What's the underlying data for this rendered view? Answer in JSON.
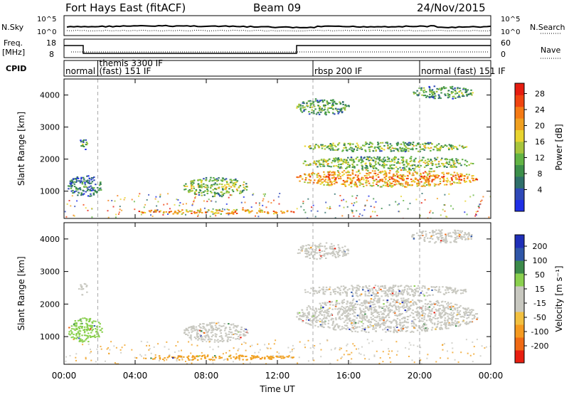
{
  "header": {
    "title": "Fort Hays East (fitACF)",
    "beam": "Beam 09",
    "date": "24/Nov/2015"
  },
  "sky_panel": {
    "left_label": "N.Sky",
    "right_label": "N.Search",
    "left_ticks": [
      "10^5",
      "10^0"
    ],
    "right_ticks": [
      "10^5",
      "10^0"
    ]
  },
  "freq_panel": {
    "left_label_1": "Freq.",
    "left_label_2": "[MHz]",
    "right_label": "Nave",
    "left_ticks": [
      "18",
      "8"
    ],
    "right_ticks": [
      "60",
      "0"
    ]
  },
  "cpid_panel": {
    "label": "CPID",
    "modes": [
      {
        "text": "normal",
        "start_hour": 0,
        "row": 2
      },
      {
        "text": "themis 3300 IF",
        "start_hour": 1.9,
        "row": 1
      },
      {
        "text": "(fast) 151 IF",
        "start_hour": 1.9,
        "row": 2
      },
      {
        "text": "rbsp 200 IF",
        "start_hour": 14.0,
        "row": 2
      },
      {
        "text": "normal (fast) 151 IF",
        "start_hour": 20.0,
        "row": 2
      }
    ],
    "divider_hours": [
      1.9,
      14.0,
      20.0
    ]
  },
  "chart_data": [
    {
      "type": "heatmap",
      "name": "power",
      "ylabel": "Slant Range [km]",
      "xlabel": "Time UT",
      "xlim": [
        0,
        24
      ],
      "ylim": [
        150,
        4500
      ],
      "yticks": [
        "1000",
        "2000",
        "3000",
        "4000"
      ],
      "colorbar_label": "Power [dB]",
      "colorbar_ticks": [
        "4",
        "8",
        "12",
        "16",
        "20",
        "24",
        "28"
      ],
      "colorbar_colors": [
        "#1f2fe6",
        "#2f49b8",
        "#2f6f6a",
        "#3c8f4a",
        "#62b444",
        "#a8c53c",
        "#e8d430",
        "#f0a020",
        "#f57a14",
        "#f04410",
        "#e61d10"
      ],
      "regions": [
        {
          "t0": 0.2,
          "t1": 2.1,
          "r0": 850,
          "r1": 1500,
          "level": 3
        },
        {
          "t0": 0.8,
          "t1": 1.3,
          "r0": 2300,
          "r1": 2650,
          "level": 4
        },
        {
          "t0": 6.7,
          "t1": 10.3,
          "r0": 850,
          "r1": 1450,
          "level": 5
        },
        {
          "t0": 4.0,
          "t1": 13.0,
          "r0": 300,
          "r1": 450,
          "level": 8
        },
        {
          "t0": 13.0,
          "t1": 23.2,
          "r0": 1150,
          "r1": 1700,
          "level": 8
        },
        {
          "t0": 13.4,
          "t1": 23.0,
          "r0": 1700,
          "r1": 2100,
          "level": 5
        },
        {
          "t0": 13.5,
          "t1": 22.6,
          "r0": 2250,
          "r1": 2550,
          "level": 5
        },
        {
          "t0": 13.0,
          "t1": 16.0,
          "r0": 3400,
          "r1": 3900,
          "level": 4
        },
        {
          "t0": 19.5,
          "t1": 23.0,
          "r0": 3900,
          "r1": 4300,
          "level": 4
        }
      ],
      "vertical_markers_hours": [
        1.9,
        14.0,
        20.0
      ]
    },
    {
      "type": "heatmap",
      "name": "velocity",
      "ylabel": "Slant Range [km]",
      "xlabel": "Time UT",
      "xlim": [
        0,
        24
      ],
      "ylim": [
        150,
        4500
      ],
      "yticks": [
        "1000",
        "2000",
        "3000",
        "4000"
      ],
      "xticks": [
        "00:00",
        "04:00",
        "08:00",
        "12:00",
        "16:00",
        "20:00",
        "00:00"
      ],
      "colorbar_label": "Velocity [m s⁻¹]",
      "colorbar_ticks": [
        "200",
        "100",
        "50",
        "15",
        "-15",
        "-50",
        "-100",
        "-200"
      ],
      "colorbar_colors": [
        "#1f2fb8",
        "#2f56a8",
        "#3c8a4a",
        "#8ad04e",
        "#c8c8c0",
        "#c8c8c0",
        "#f2c040",
        "#f59a20",
        "#f06a14",
        "#e81e10"
      ],
      "regions": [
        {
          "t0": 0.2,
          "t1": 2.1,
          "r0": 850,
          "r1": 1600,
          "color": "#8ad04e"
        },
        {
          "t0": 0.8,
          "t1": 1.3,
          "r0": 2300,
          "r1": 2650,
          "color": "#c8c8c0"
        },
        {
          "t0": 6.7,
          "t1": 10.3,
          "r0": 850,
          "r1": 1450,
          "color": "#c8c8c0"
        },
        {
          "t0": 4.0,
          "t1": 13.0,
          "r0": 300,
          "r1": 450,
          "color": "#f0a020"
        },
        {
          "t0": 13.0,
          "t1": 23.2,
          "r0": 1150,
          "r1": 2200,
          "color": "#c8c8c0"
        },
        {
          "t0": 13.5,
          "t1": 22.6,
          "r0": 2250,
          "r1": 2600,
          "color": "#c8c8c0"
        },
        {
          "t0": 13.0,
          "t1": 16.0,
          "r0": 3400,
          "r1": 3900,
          "color": "#c8c8c0"
        },
        {
          "t0": 19.5,
          "t1": 23.0,
          "r0": 3900,
          "r1": 4300,
          "color": "#c8c8c0"
        }
      ],
      "vertical_markers_hours": [
        1.9,
        14.0,
        20.0
      ]
    }
  ]
}
